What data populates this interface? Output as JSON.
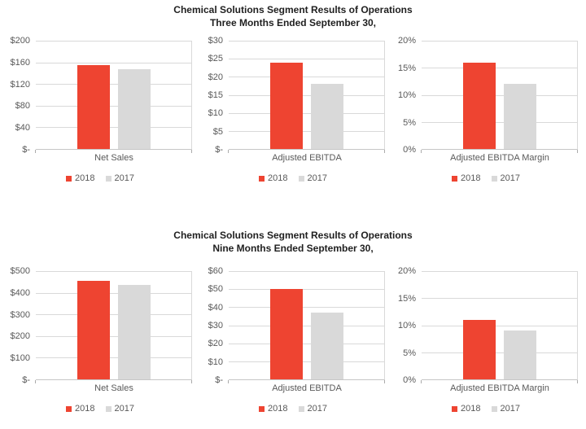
{
  "colors": {
    "series_2018": "#ee4431",
    "series_2017": "#d9d9d9",
    "gridline": "#d9d9d9",
    "axis_line": "#c6c6c6",
    "label_text": "#595959",
    "title_text": "#1f1f1f"
  },
  "sections": [
    {
      "title_line1": "Chemical Solutions Segment Results of Operations",
      "title_line2": "Three Months Ended September 30,"
    },
    {
      "title_line1": "Chemical Solutions Segment Results of Operations",
      "title_line2": "Nine Months Ended September 30,"
    }
  ],
  "chart_data": [
    {
      "id": "three-months-net-sales",
      "section_index": 0,
      "type": "bar",
      "title": "Chemical Solutions Segment Results of Operations",
      "subtitle": "Three Months Ended September 30,",
      "categories": [
        "Net Sales"
      ],
      "series": [
        {
          "name": "2018",
          "values": [
            155
          ],
          "color": "#ee4431"
        },
        {
          "name": "2017",
          "values": [
            147
          ],
          "color": "#d9d9d9"
        }
      ],
      "y_ticks": [
        "$-",
        "$40",
        "$80",
        "$120",
        "$160",
        "$200"
      ],
      "ylim": [
        0,
        200
      ],
      "grid": true,
      "legend_position": "bottom"
    },
    {
      "id": "three-months-adjusted-ebitda",
      "section_index": 0,
      "type": "bar",
      "title": "Chemical Solutions Segment Results of Operations",
      "subtitle": "Three Months Ended September 30,",
      "categories": [
        "Adjusted EBITDA"
      ],
      "series": [
        {
          "name": "2018",
          "values": [
            24
          ],
          "color": "#ee4431"
        },
        {
          "name": "2017",
          "values": [
            18
          ],
          "color": "#d9d9d9"
        }
      ],
      "y_ticks": [
        "$-",
        "$5",
        "$10",
        "$15",
        "$20",
        "$25",
        "$30"
      ],
      "ylim": [
        0,
        30
      ],
      "grid": true,
      "legend_position": "bottom"
    },
    {
      "id": "three-months-adjusted-ebitda-margin",
      "section_index": 0,
      "type": "bar",
      "title": "Chemical Solutions Segment Results of Operations",
      "subtitle": "Three Months Ended September 30,",
      "categories": [
        "Adjusted EBITDA Margin"
      ],
      "series": [
        {
          "name": "2018",
          "values": [
            16
          ],
          "color": "#ee4431"
        },
        {
          "name": "2017",
          "values": [
            12
          ],
          "color": "#d9d9d9"
        }
      ],
      "y_ticks": [
        "0%",
        "5%",
        "10%",
        "15%",
        "20%"
      ],
      "ylim": [
        0,
        20
      ],
      "grid": true,
      "legend_position": "bottom"
    },
    {
      "id": "nine-months-net-sales",
      "section_index": 1,
      "type": "bar",
      "title": "Chemical Solutions Segment Results of Operations",
      "subtitle": "Nine Months Ended September 30,",
      "categories": [
        "Net Sales"
      ],
      "series": [
        {
          "name": "2018",
          "values": [
            455
          ],
          "color": "#ee4431"
        },
        {
          "name": "2017",
          "values": [
            437
          ],
          "color": "#d9d9d9"
        }
      ],
      "y_ticks": [
        "$-",
        "$100",
        "$200",
        "$300",
        "$400",
        "$500"
      ],
      "ylim": [
        0,
        500
      ],
      "grid": true,
      "legend_position": "bottom"
    },
    {
      "id": "nine-months-adjusted-ebitda",
      "section_index": 1,
      "type": "bar",
      "title": "Chemical Solutions Segment Results of Operations",
      "subtitle": "Nine Months Ended September 30,",
      "categories": [
        "Adjusted EBITDA"
      ],
      "series": [
        {
          "name": "2018",
          "values": [
            50
          ],
          "color": "#ee4431"
        },
        {
          "name": "2017",
          "values": [
            37
          ],
          "color": "#d9d9d9"
        }
      ],
      "y_ticks": [
        "$-",
        "$10",
        "$20",
        "$30",
        "$40",
        "$50",
        "$60"
      ],
      "ylim": [
        0,
        60
      ],
      "grid": true,
      "legend_position": "bottom"
    },
    {
      "id": "nine-months-adjusted-ebitda-margin",
      "section_index": 1,
      "type": "bar",
      "title": "Chemical Solutions Segment Results of Operations",
      "subtitle": "Nine Months Ended September 30,",
      "categories": [
        "Adjusted EBITDA Margin"
      ],
      "series": [
        {
          "name": "2018",
          "values": [
            11
          ],
          "color": "#ee4431"
        },
        {
          "name": "2017",
          "values": [
            9
          ],
          "color": "#d9d9d9"
        }
      ],
      "y_ticks": [
        "0%",
        "5%",
        "10%",
        "15%",
        "20%"
      ],
      "ylim": [
        0,
        20
      ],
      "grid": true,
      "legend_position": "bottom"
    }
  ]
}
